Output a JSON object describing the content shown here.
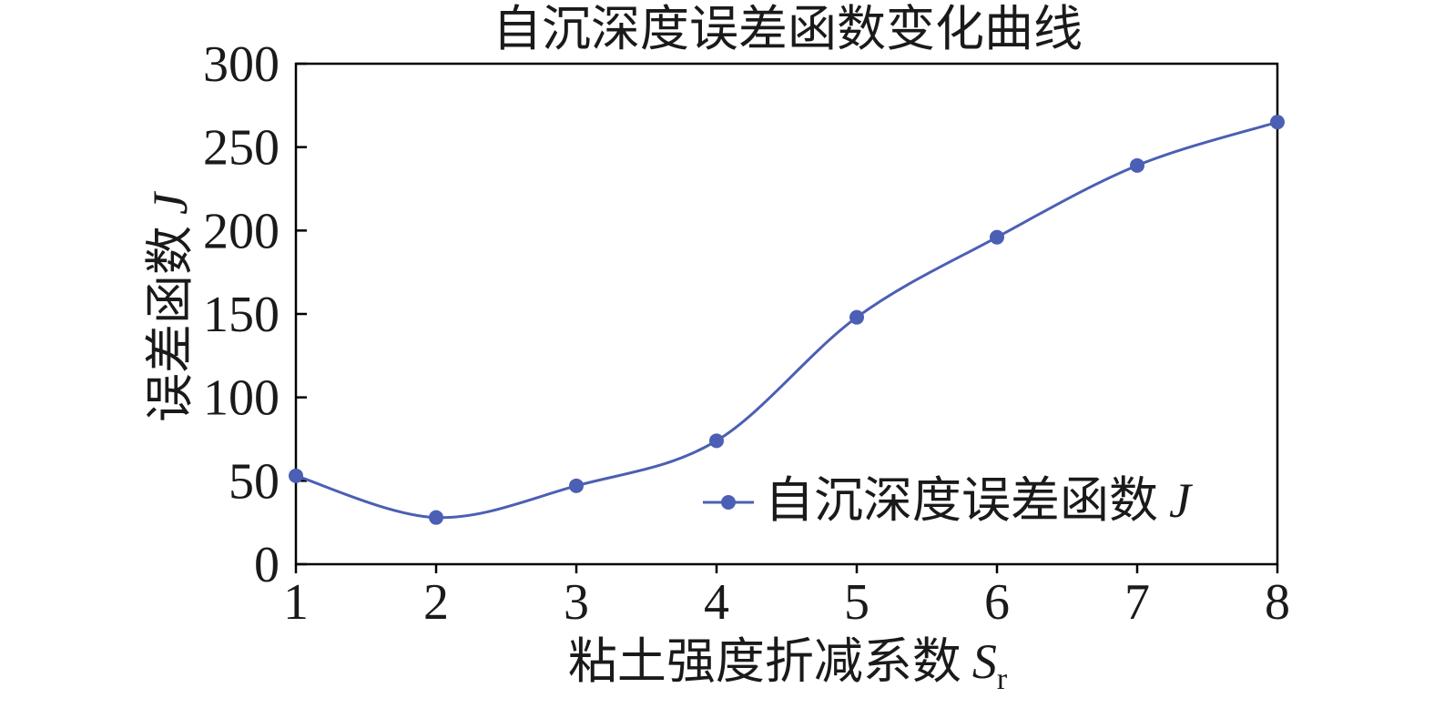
{
  "chart_data": {
    "type": "line",
    "title": "自沉深度误差函数变化曲线",
    "xlabel": "粘土强度折减系数",
    "xlabel_symbol": "S",
    "xlabel_subscript": "r",
    "ylabel": "误差函数",
    "ylabel_symbol": "J",
    "x": [
      1,
      2,
      3,
      4,
      5,
      6,
      7,
      8
    ],
    "xticks": [
      1,
      2,
      3,
      4,
      5,
      6,
      7,
      8
    ],
    "yticks": [
      0,
      50,
      100,
      150,
      200,
      250,
      300
    ],
    "xlim": [
      1,
      8
    ],
    "ylim": [
      0,
      300
    ],
    "series": [
      {
        "name": "自沉深度误差函数",
        "name_symbol": "J",
        "values": [
          53,
          28,
          47,
          74,
          148,
          196,
          239,
          265
        ],
        "color": "#4b5fb4",
        "marker": "circle",
        "smooth": true
      }
    ],
    "grid": false,
    "legend": {
      "position": "lower-right",
      "frame": false
    },
    "axis_color": "#000000"
  }
}
